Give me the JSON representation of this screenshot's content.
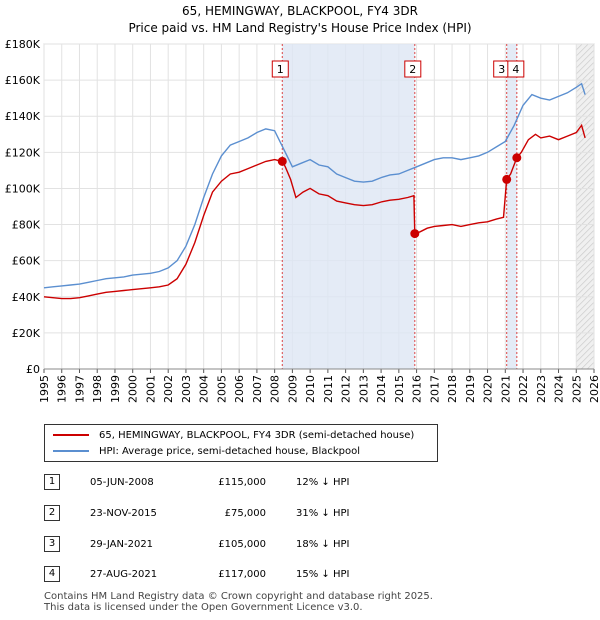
{
  "chart_data": {
    "type": "line",
    "title": "65, HEMINGWAY, BLACKPOOL, FY4 3DR",
    "subtitle": "Price paid vs. HM Land Registry's House Price Index (HPI)",
    "xlim": [
      1995,
      2026
    ],
    "ylim": [
      0,
      180000
    ],
    "x_ticks": [
      "1995",
      "1996",
      "1997",
      "1998",
      "1999",
      "2000",
      "2001",
      "2002",
      "2003",
      "2004",
      "2005",
      "2006",
      "2007",
      "2008",
      "2009",
      "2010",
      "2011",
      "2012",
      "2013",
      "2014",
      "2015",
      "2016",
      "2017",
      "2018",
      "2019",
      "2020",
      "2021",
      "2022",
      "2023",
      "2024",
      "2025",
      "2026"
    ],
    "y_ticks": [
      {
        "value": 0,
        "label": "£0"
      },
      {
        "value": 20000,
        "label": "£20K"
      },
      {
        "value": 40000,
        "label": "£40K"
      },
      {
        "value": 60000,
        "label": "£60K"
      },
      {
        "value": 80000,
        "label": "£80K"
      },
      {
        "value": 100000,
        "label": "£100K"
      },
      {
        "value": 120000,
        "label": "£120K"
      },
      {
        "value": 140000,
        "label": "£140K"
      },
      {
        "value": 160000,
        "label": "£160K"
      },
      {
        "value": 180000,
        "label": "£180K"
      }
    ],
    "series": [
      {
        "name": "65, HEMINGWAY, BLACKPOOL, FY4 3DR (semi-detached house)",
        "color": "#cc0000",
        "x": [
          1995.0,
          1995.5,
          1996.0,
          1996.5,
          1997.0,
          1997.5,
          1998.0,
          1998.5,
          1999.0,
          1999.5,
          2000.0,
          2000.5,
          2001.0,
          2001.5,
          2002.0,
          2002.5,
          2003.0,
          2003.5,
          2004.0,
          2004.5,
          2005.0,
          2005.5,
          2006.0,
          2006.5,
          2007.0,
          2007.5,
          2008.0,
          2008.43,
          2008.6,
          2008.9,
          2009.2,
          2009.6,
          2010.0,
          2010.5,
          2011.0,
          2011.5,
          2012.0,
          2012.5,
          2013.0,
          2013.5,
          2014.0,
          2014.5,
          2015.0,
          2015.5,
          2015.85,
          2015.9,
          2016.2,
          2016.6,
          2017.0,
          2017.5,
          2018.0,
          2018.5,
          2019.0,
          2019.5,
          2020.0,
          2020.5,
          2020.9,
          2021.08,
          2021.3,
          2021.65,
          2021.9,
          2022.3,
          2022.7,
          2023.0,
          2023.5,
          2024.0,
          2024.5,
          2025.0,
          2025.3,
          2025.5
        ],
        "values": [
          40000,
          39500,
          39000,
          39000,
          39500,
          40500,
          41500,
          42500,
          43000,
          43500,
          44000,
          44500,
          45000,
          45500,
          46500,
          50000,
          58000,
          70000,
          85000,
          98000,
          104000,
          108000,
          109000,
          111000,
          113000,
          115000,
          116000,
          115000,
          112000,
          105000,
          95000,
          98000,
          100000,
          97000,
          96000,
          93000,
          92000,
          91000,
          90500,
          91000,
          92500,
          93500,
          94000,
          95000,
          96000,
          75000,
          76000,
          78000,
          79000,
          79500,
          80000,
          79000,
          80000,
          81000,
          81500,
          83000,
          84000,
          105000,
          108000,
          117000,
          120000,
          127000,
          130000,
          128000,
          129000,
          127000,
          129000,
          131000,
          135000,
          128000
        ]
      },
      {
        "name": "HPI: Average price, semi-detached house, Blackpool",
        "color": "#5b8fd0",
        "x": [
          1995.0,
          1995.5,
          1996.0,
          1996.5,
          1997.0,
          1997.5,
          1998.0,
          1998.5,
          1999.0,
          1999.5,
          2000.0,
          2000.5,
          2001.0,
          2001.5,
          2002.0,
          2002.5,
          2003.0,
          2003.5,
          2004.0,
          2004.5,
          2005.0,
          2005.5,
          2006.0,
          2006.5,
          2007.0,
          2007.5,
          2008.0,
          2008.5,
          2009.0,
          2009.5,
          2010.0,
          2010.5,
          2011.0,
          2011.5,
          2012.0,
          2012.5,
          2013.0,
          2013.5,
          2014.0,
          2014.5,
          2015.0,
          2015.5,
          2016.0,
          2016.5,
          2017.0,
          2017.5,
          2018.0,
          2018.5,
          2019.0,
          2019.5,
          2020.0,
          2020.5,
          2021.0,
          2021.5,
          2022.0,
          2022.5,
          2023.0,
          2023.5,
          2024.0,
          2024.5,
          2025.0,
          2025.3,
          2025.5
        ],
        "values": [
          45000,
          45500,
          46000,
          46500,
          47000,
          48000,
          49000,
          50000,
          50500,
          51000,
          52000,
          52500,
          53000,
          54000,
          56000,
          60000,
          68000,
          80000,
          95000,
          108000,
          118000,
          124000,
          126000,
          128000,
          131000,
          133000,
          132000,
          122000,
          112000,
          114000,
          116000,
          113000,
          112000,
          108000,
          106000,
          104000,
          103500,
          104000,
          106000,
          107500,
          108000,
          110000,
          112000,
          114000,
          116000,
          117000,
          117000,
          116000,
          117000,
          118000,
          120000,
          123000,
          126000,
          135000,
          146000,
          152000,
          150000,
          149000,
          151000,
          153000,
          156000,
          158000,
          152000
        ]
      }
    ],
    "sales": [
      {
        "id": "1",
        "x": 2008.43,
        "value": 115000
      },
      {
        "id": "2",
        "x": 2015.9,
        "value": 75000
      },
      {
        "id": "3",
        "x": 2021.08,
        "value": 105000
      },
      {
        "id": "4",
        "x": 2021.65,
        "value": 117000
      }
    ],
    "future_start": 2025.0
  },
  "legend": {
    "property": "65, HEMINGWAY, BLACKPOOL, FY4 3DR (semi-detached house)",
    "hpi": "HPI: Average price, semi-detached house, Blackpool"
  },
  "sales_table": [
    {
      "num": "1",
      "date": "05-JUN-2008",
      "price": "£115,000",
      "hpi": "12% ↓ HPI"
    },
    {
      "num": "2",
      "date": "23-NOV-2015",
      "price": "£75,000",
      "hpi": "31% ↓ HPI"
    },
    {
      "num": "3",
      "date": "29-JAN-2021",
      "price": "£105,000",
      "hpi": "18% ↓ HPI"
    },
    {
      "num": "4",
      "date": "27-AUG-2021",
      "price": "£117,000",
      "hpi": "15% ↓ HPI"
    }
  ],
  "footer": {
    "line1": "Contains HM Land Registry data © Crown copyright and database right 2025.",
    "line2": "This data is licensed under the Open Government Licence v3.0."
  }
}
